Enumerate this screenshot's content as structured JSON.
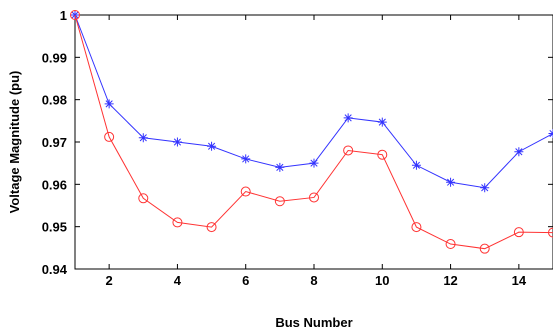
{
  "chart_data": {
    "type": "line",
    "title": "",
    "xlabel": "Bus Number",
    "ylabel": "Voltage Magnitude (pu)",
    "xlim": [
      1,
      15
    ],
    "ylim": [
      0.94,
      1.0
    ],
    "xticks": [
      "2",
      "4",
      "6",
      "8",
      "10",
      "12",
      "14"
    ],
    "yticks": [
      "0.94",
      "0.95",
      "0.96",
      "0.97",
      "0.98",
      "0.99",
      "1"
    ],
    "x": [
      1,
      2,
      3,
      4,
      5,
      6,
      7,
      8,
      9,
      10,
      11,
      12,
      13,
      14,
      15
    ],
    "series": [
      {
        "color": "#3333ff",
        "marker": "star",
        "values": [
          1.0,
          0.979,
          0.971,
          0.97,
          0.969,
          0.966,
          0.964,
          0.965,
          0.9757,
          0.9747,
          0.9645,
          0.9605,
          0.9592,
          0.9677,
          0.972
        ]
      },
      {
        "color": "#ff3333",
        "marker": "circle",
        "values": [
          1.0,
          0.9712,
          0.9567,
          0.951,
          0.9499,
          0.9583,
          0.956,
          0.9569,
          0.968,
          0.967,
          0.9499,
          0.9459,
          0.9448,
          0.9487,
          0.9486
        ]
      }
    ],
    "grid": false,
    "legend": false
  }
}
